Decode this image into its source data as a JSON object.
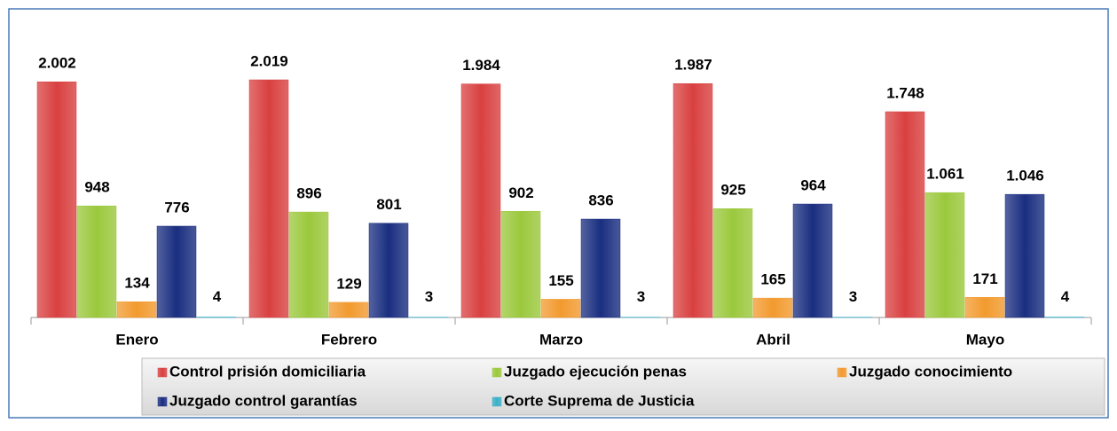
{
  "chart_data": {
    "type": "bar",
    "categories": [
      "Enero",
      "Febrero",
      "Marzo",
      "Abril",
      "Mayo"
    ],
    "series": [
      {
        "name": "Control prisión domiciliaria",
        "color": "#d94040",
        "values": [
          2002,
          2019,
          1984,
          1987,
          1748
        ],
        "value_labels": [
          "2.002",
          "2.019",
          "1.984",
          "1.987",
          "1.748"
        ]
      },
      {
        "name": "Juzgado ejecución penas",
        "color": "#9bc83c",
        "values": [
          948,
          896,
          902,
          925,
          1061
        ],
        "value_labels": [
          "948",
          "896",
          "902",
          "925",
          "1.061"
        ]
      },
      {
        "name": "Juzgado conocimiento",
        "color": "#f29a2e",
        "values": [
          134,
          129,
          155,
          165,
          171
        ]
      },
      {
        "name": "Juzgado control garantías",
        "color": "#1a2e80",
        "values": [
          776,
          801,
          836,
          964,
          1046
        ],
        "value_labels": [
          "776",
          "801",
          "836",
          "964",
          "1.046"
        ]
      },
      {
        "name": "Corte Suprema de Justicia",
        "color": "#3ab0c8",
        "values": [
          4,
          3,
          3,
          3,
          4
        ]
      }
    ],
    "legend": "bottom"
  }
}
